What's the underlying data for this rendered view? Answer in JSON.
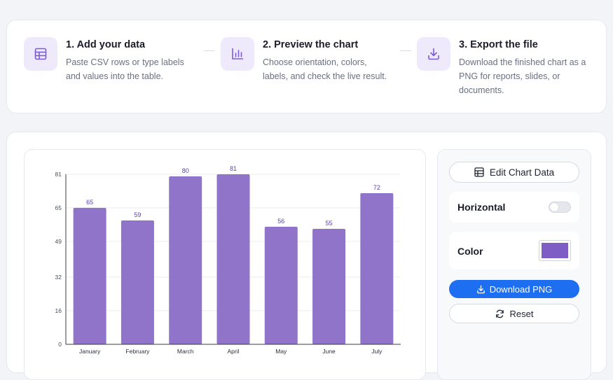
{
  "steps": [
    {
      "title": "1. Add your data",
      "desc_lines": [
        "Paste CSV rows or type labels",
        "and values into the table."
      ],
      "icon": "table-icon"
    },
    {
      "title": "2. Preview the chart",
      "desc_lines": [
        "Choose orientation, colors,",
        "labels, and check the live result."
      ],
      "icon": "bar-chart-icon"
    },
    {
      "title": "3. Export the file",
      "desc_lines": [
        "Download the finished chart as a",
        "PNG for reports, slides, or",
        "documents."
      ],
      "icon": "download-icon"
    }
  ],
  "panel": {
    "edit_label": "Edit Chart Data",
    "horizontal_label": "Horizontal",
    "horizontal_on": false,
    "color_label": "Color",
    "download_label": "Download PNG",
    "reset_label": "Reset"
  },
  "colors": {
    "bar": "#8f74c9",
    "accent": "#1d6ef0",
    "icon": "#7c5cd6"
  },
  "chart_data": {
    "type": "bar",
    "categories": [
      "January",
      "February",
      "March",
      "April",
      "May",
      "June",
      "July"
    ],
    "values": [
      65,
      59,
      80,
      81,
      56,
      55,
      72
    ],
    "yticks": [
      0,
      16,
      32,
      49,
      65,
      81
    ],
    "ylim": [
      0,
      81
    ],
    "grid": true,
    "title": "",
    "xlabel": "",
    "ylabel": ""
  }
}
